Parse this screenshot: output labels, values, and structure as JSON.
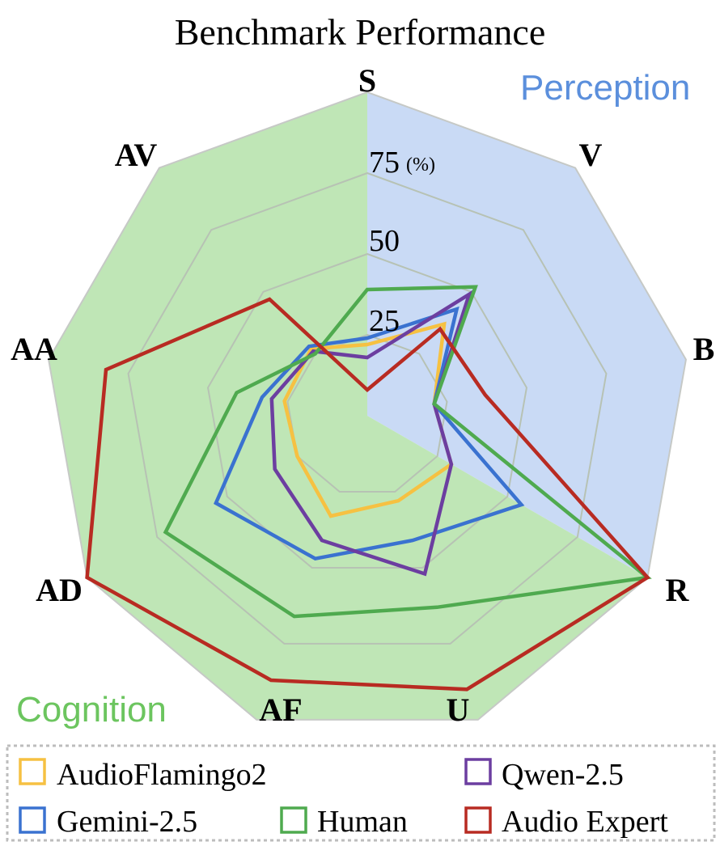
{
  "chart_data": {
    "type": "radar",
    "title": "Benchmark Performance",
    "axes": [
      "S",
      "V",
      "B",
      "R",
      "U",
      "AF",
      "AD",
      "AA",
      "AV"
    ],
    "ticks": [
      "25",
      "50",
      "75"
    ],
    "tick_unit": "(%)",
    "rlim": [
      0,
      100
    ],
    "grid": true,
    "legend_position": "bottom",
    "regions": [
      {
        "label": "Perception",
        "axes": [
          "S",
          "V",
          "B"
        ],
        "color": "#c9daf5",
        "text_color": "#5b8fdc"
      },
      {
        "label": "Cognition",
        "axes": [
          "R",
          "U",
          "AF",
          "AD",
          "AA",
          "AV"
        ],
        "color": "#bfe6b6",
        "text_color": "#6cc55f"
      }
    ],
    "series": [
      {
        "name": "AudioFlamingo2",
        "color": "#f6c142",
        "values": [
          22,
          37,
          21,
          30,
          28,
          33,
          25,
          26,
          27
        ]
      },
      {
        "name": "Gemini-2.5",
        "color": "#3a72d0",
        "values": [
          24,
          43,
          21,
          55,
          41,
          47,
          54,
          33,
          28
        ]
      },
      {
        "name": "Qwen-2.5",
        "color": "#6c3ea0",
        "values": [
          18,
          49,
          21,
          30,
          52,
          41,
          33,
          30,
          26
        ]
      },
      {
        "name": "Human",
        "color": "#4faa4f",
        "values": [
          39,
          52,
          21,
          100,
          63,
          66,
          72,
          41,
          25
        ]
      },
      {
        "name": "Audio Expert",
        "color": "#b82b22",
        "values": [
          8,
          35,
          37,
          100,
          90,
          87,
          100,
          82,
          47
        ]
      }
    ],
    "legend_order": [
      "AudioFlamingo2",
      "Qwen-2.5",
      "Gemini-2.5",
      "Human",
      "Audio Expert"
    ]
  }
}
